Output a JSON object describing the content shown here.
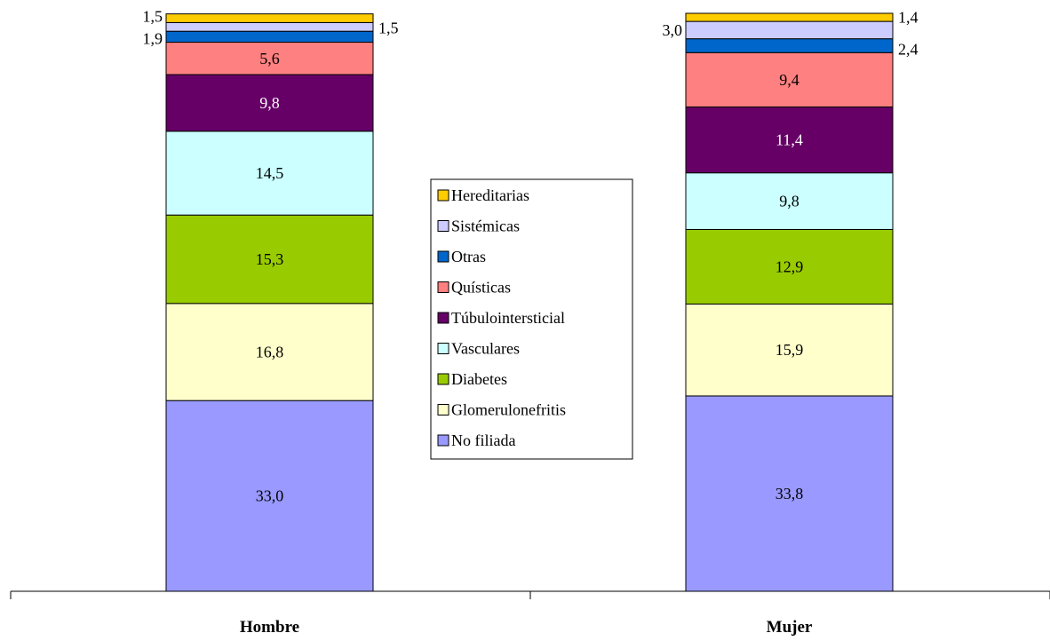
{
  "chart_data": {
    "type": "bar",
    "stacked": true,
    "categories": [
      "Hombre",
      "Mujer"
    ],
    "series": [
      {
        "name": "No filiada",
        "color": "#9999ff",
        "values": [
          33.0,
          33.8
        ],
        "labels": [
          "33,0",
          "33,8"
        ]
      },
      {
        "name": "Glomerulonefritis",
        "color": "#ffffcc",
        "values": [
          16.8,
          15.9
        ],
        "labels": [
          "16,8",
          "15,9"
        ]
      },
      {
        "name": "Diabetes",
        "color": "#99cc00",
        "values": [
          15.3,
          12.9
        ],
        "labels": [
          "15,3",
          "12,9"
        ]
      },
      {
        "name": "Vasculares",
        "color": "#ccffff",
        "values": [
          14.5,
          9.8
        ],
        "labels": [
          "14,5",
          "9,8"
        ]
      },
      {
        "name": "Túbulointersticial",
        "color": "#660066",
        "values": [
          9.8,
          11.4
        ],
        "labels": [
          "9,8",
          "11,4"
        ]
      },
      {
        "name": "Quísticas",
        "color": "#ff8080",
        "values": [
          5.6,
          9.4
        ],
        "labels": [
          "5,6",
          "9,4"
        ]
      },
      {
        "name": "Otras",
        "color": "#0066cc",
        "values": [
          1.9,
          2.4
        ],
        "labels": [
          "1,9",
          "2,4"
        ]
      },
      {
        "name": "Sistémicas",
        "color": "#ccccff",
        "values": [
          1.5,
          3.0
        ],
        "labels": [
          "1,5",
          "3,0"
        ]
      },
      {
        "name": "Hereditarias",
        "color": "#ffcc00",
        "values": [
          1.5,
          1.4
        ],
        "labels": [
          "1,5",
          "1,4"
        ]
      }
    ],
    "ylim": [
      0,
      100
    ],
    "legend": "center"
  }
}
